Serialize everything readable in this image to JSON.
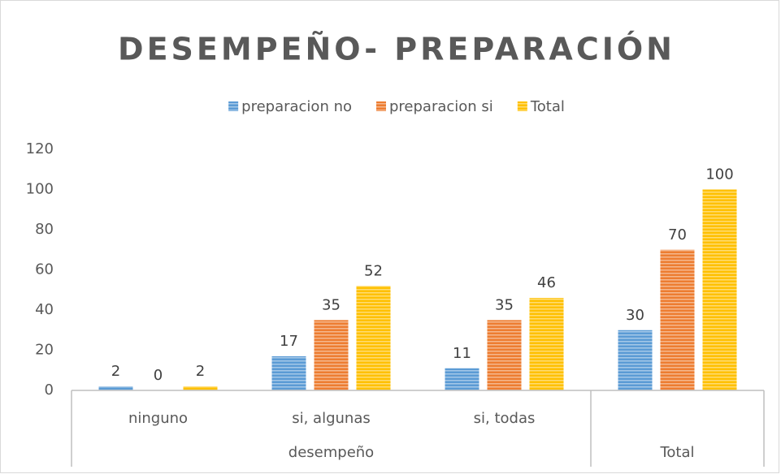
{
  "chart_data": {
    "type": "bar",
    "title": "DESEMPEÑO- PREPARACIÓN",
    "categories": [
      "ninguno",
      "si, algunas",
      "si, todas",
      null
    ],
    "groups": [
      {
        "label": "desempeño",
        "span": 3
      },
      {
        "label": "Total",
        "span": 1
      }
    ],
    "series": [
      {
        "name": "preparacion no",
        "color": "#5b9bd5",
        "values": [
          2,
          17,
          11,
          30
        ]
      },
      {
        "name": "preparacion si",
        "color": "#ed7d31",
        "values": [
          0,
          35,
          35,
          70
        ]
      },
      {
        "name": "Total",
        "color": "#ffc000",
        "values": [
          2,
          52,
          46,
          100
        ]
      }
    ],
    "ylim": [
      0,
      120
    ],
    "yticks": [
      0,
      20,
      40,
      60,
      80,
      100,
      120
    ],
    "grid": false,
    "legend": "top"
  }
}
